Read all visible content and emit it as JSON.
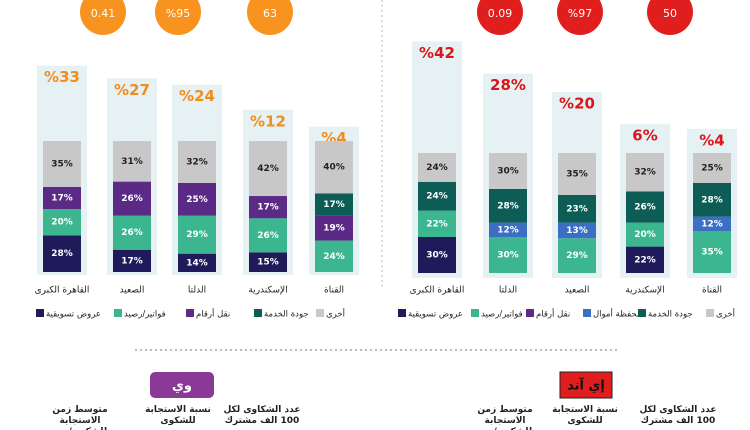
{
  "chart_data": [
    {
      "type": "stacked_bar",
      "categories": [
        "القاهرة الكبرى",
        "الصعيد",
        "الدلتا",
        "الإسكندرية",
        "القناة"
      ],
      "region_share": [
        33,
        27,
        24,
        12,
        4
      ],
      "region_share_labels": [
        "%33",
        "%27",
        "%24",
        "%12",
        "%4"
      ],
      "accent": "#f28c1c",
      "series": [
        {
          "name": "عروض تسويقية",
          "color": "#1f1b5a",
          "values": [
            28,
            17,
            14,
            15,
            null
          ],
          "value_labels": [
            "28%",
            "17%",
            "14%",
            "15%",
            null
          ]
        },
        {
          "name": "فواتير/رصيد",
          "color": "#3cb68f",
          "values": [
            20,
            26,
            29,
            26,
            24
          ],
          "value_labels": [
            "20%",
            "26%",
            "29%",
            "26%",
            "24%"
          ]
        },
        {
          "name": "نقل أرقام",
          "color": "#5b2a86",
          "values": [
            17,
            26,
            25,
            17,
            19
          ],
          "value_labels": [
            "17%",
            "26%",
            "25%",
            "17%",
            "19%"
          ]
        },
        {
          "name": "جودة الخدمة",
          "color": "#0d5c55",
          "values": [
            null,
            null,
            null,
            null,
            17
          ],
          "value_labels": [
            null,
            null,
            null,
            null,
            "17%"
          ]
        },
        {
          "name": "أخرى",
          "color": "#c8c8c8",
          "values": [
            35,
            31,
            32,
            42,
            40
          ],
          "value_labels": [
            "35%",
            "31%",
            "32%",
            "42%",
            "40%"
          ]
        }
      ]
    },
    {
      "type": "stacked_bar",
      "categories": [
        "القاهرة الكبرى",
        "الدلتا",
        "الصعيد",
        "الإسكندرية",
        "القناة"
      ],
      "region_share": [
        42,
        28,
        20,
        6,
        4
      ],
      "region_share_labels": [
        "%42",
        "28%",
        "%20",
        "6%",
        "%4"
      ],
      "accent": "#d8161b",
      "series": [
        {
          "name": "عروض تسويقية",
          "color": "#1f1b5a",
          "values": [
            30,
            null,
            null,
            22,
            null
          ],
          "value_labels": [
            "30%",
            null,
            null,
            "22%",
            null
          ]
        },
        {
          "name": "فواتير/رصيد",
          "color": "#3cb68f",
          "values": [
            22,
            30,
            29,
            20,
            35
          ],
          "value_labels": [
            "22%",
            "30%",
            "29%",
            "20%",
            "35%"
          ]
        },
        {
          "name": "نقل أرقام",
          "color": "#5b2a86",
          "values": [
            null,
            null,
            null,
            null,
            null
          ],
          "value_labels": [
            null,
            null,
            null,
            null,
            null
          ]
        },
        {
          "name": "محفظة أموال",
          "color": "#3a6fc4",
          "values": [
            null,
            12,
            13,
            null,
            12
          ],
          "value_labels": [
            null,
            "12%",
            "13%",
            null,
            "12%"
          ]
        },
        {
          "name": "جودة الخدمة",
          "color": "#0d5c55",
          "values": [
            24,
            28,
            23,
            26,
            28
          ],
          "value_labels": [
            "24%",
            "28%",
            "23%",
            "26%",
            "28%"
          ]
        },
        {
          "name": "أخرى",
          "color": "#c8c8c8",
          "values": [
            24,
            30,
            35,
            32,
            25
          ],
          "value_labels": [
            "24%",
            "30%",
            "35%",
            "32%",
            "25%"
          ]
        }
      ]
    }
  ],
  "panels": [
    {
      "brand": "وي",
      "brand_color": "#8a3a96",
      "kpi_color": "#f7931e",
      "kpis": [
        {
          "value": "0.41",
          "label": "متوسط زمن الاستجابة للشكوى/يوم"
        },
        {
          "value": "%95",
          "label": "نسبة الاستجابة للشكوى"
        },
        {
          "value": "63",
          "label": "عدد الشكاوى لكل 100 الف مشترك"
        }
      ]
    },
    {
      "brand": "إي آند",
      "brand_color": "#e01e1e",
      "kpi_color": "#e01e1e",
      "kpis": [
        {
          "value": "0.09",
          "label": "متوسط زمن الاستجابة للشكوى/يوم"
        },
        {
          "value": "%97",
          "label": "نسبة الاستجابة للشكوى"
        },
        {
          "value": "50",
          "label": "عدد الشكاوى لكل 100 الف مشترك"
        }
      ]
    }
  ]
}
